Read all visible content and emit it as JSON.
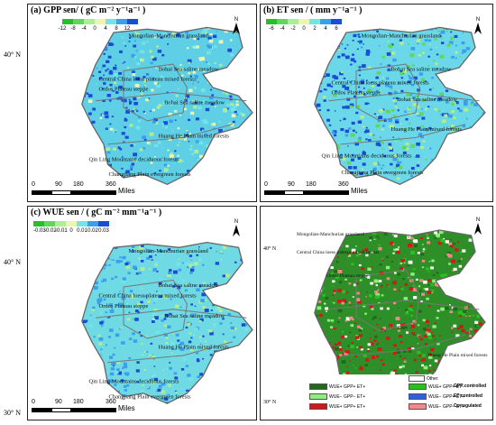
{
  "panels": {
    "a": {
      "title": "(a) GPP sen/ ( gC m⁻² y⁻¹a⁻¹ )",
      "ticks": [
        "-12",
        "-8",
        "-4",
        "0",
        "4",
        "8",
        "12"
      ],
      "colors": [
        "#22c02a",
        "#5fd85a",
        "#b0ec90",
        "#eaf7b0",
        "#72e6e6",
        "#3aa0ee",
        "#1a4cd6"
      ],
      "lat_top": "40° N",
      "labels": [
        "Mongolian-Manchurian grassland",
        "Central China loess plateau mixed forests",
        "Ordos Plateau steppe",
        "Bohai Sea saline meadow",
        "Bohai Sea saline meadow",
        "Huang He Plain mixed forests",
        "Qin Ling Mountains deciduous forests",
        "Changjiang Plain evergreen forests"
      ]
    },
    "b": {
      "title": "(b) ET sen / ( mm y⁻¹a⁻¹ )",
      "ticks": [
        "-6",
        "-4",
        "-2",
        "0",
        "2",
        "4",
        "6"
      ],
      "colors": [
        "#22c02a",
        "#5fd85a",
        "#b0ec90",
        "#eaf7b0",
        "#72e6e6",
        "#3aa0ee",
        "#1a4cd6"
      ],
      "lat_top": "",
      "labels": [
        "Mongolian-Manchurian grassland",
        "Central China loess plateau mixed forests",
        "Ordos Plateau steppe",
        "Bohai Sea saline meadow",
        "Bohai Sea saline meadow",
        "Huang He Plain mixed forests",
        "Qin Ling Mountains deciduous forests",
        "Changjiang Plain evergreen forests"
      ]
    },
    "c": {
      "title": "(c) WUE sen / ( gC m⁻² mm⁻¹a⁻¹ )",
      "ticks": [
        "-0.03",
        "-0.02",
        "-0.01",
        "0",
        "0.01",
        "0.02",
        "0.03"
      ],
      "colors": [
        "#22c02a",
        "#5fd85a",
        "#b0ec90",
        "#eaf7b0",
        "#72e6e6",
        "#3aa0ee",
        "#1a4cd6"
      ],
      "lat_top": "40° N",
      "lat_bottom": "30° N",
      "labels": [
        "Mongolian-Manchurian grassland",
        "Central China loess plateau mixed forests",
        "Ordos Plateau steppe",
        "Bohai Sea saline meadow",
        "Bohai Sea saline meadow",
        "Huang He Plain mixed forests",
        "Qin Ling Mountains deciduous forests",
        "Changjiang Plain evergreen forests"
      ]
    },
    "d": {
      "lat_top": "40° N",
      "lat_bottom": "30° N",
      "labels": [
        "Mongolian-Manchurian grassland",
        "Central China loess plateau mixed forests",
        "Ordos Plateau steppe",
        "Huang He Plain mixed forests",
        "Changjiang Plain evergreen forests",
        "Qin Ling Mountains deciduous forests"
      ]
    }
  },
  "north_label": "N",
  "scale": {
    "nums": [
      "0",
      "90",
      "180",
      "360"
    ],
    "unit": "Miles"
  },
  "legend": {
    "other": "Other",
    "items": [
      {
        "label": "WUE+ GPP+ ET+",
        "color": "#1f6b1a"
      },
      {
        "label": "WUE+ GPP+ ET−",
        "color": "#27c21e"
      },
      {
        "label": "WUE− GPP− ET+",
        "color": "#8af07a"
      },
      {
        "label": "WUE− GPP+ ET+",
        "color": "#2a63d9"
      },
      {
        "label": "WUE+ GPP+ ET+",
        "color": "#d21818"
      },
      {
        "label": "WUE− GPP− ET+",
        "color": "#f08a8a"
      }
    ],
    "categories": [
      "GPP controlled",
      "ET controlled",
      "Co-regulated"
    ]
  }
}
